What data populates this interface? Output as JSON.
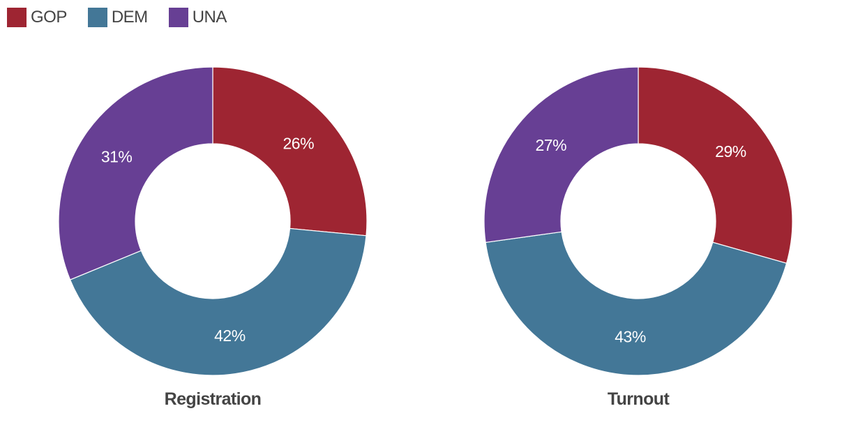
{
  "legend": [
    {
      "label": "GOP",
      "color": "#9e2532"
    },
    {
      "label": "DEM",
      "color": "#437797"
    },
    {
      "label": "UNA",
      "color": "#673f94"
    }
  ],
  "chart_data": [
    {
      "type": "pie",
      "variant": "donut",
      "title": "Registration",
      "categories": [
        "GOP",
        "DEM",
        "UNA"
      ],
      "values": [
        26.5,
        42.3,
        31.2
      ],
      "labels": [
        "26%",
        "42%",
        "31%"
      ],
      "colors": [
        "#9e2532",
        "#437797",
        "#673f94"
      ],
      "start": "12 o'clock",
      "direction": "clockwise"
    },
    {
      "type": "pie",
      "variant": "donut",
      "title": "Turnout",
      "categories": [
        "GOP",
        "DEM",
        "UNA"
      ],
      "values": [
        29.4,
        43.4,
        27.2
      ],
      "labels": [
        "29%",
        "43%",
        "27%"
      ],
      "colors": [
        "#9e2532",
        "#437797",
        "#673f94"
      ],
      "start": "12 o'clock",
      "direction": "clockwise"
    }
  ]
}
